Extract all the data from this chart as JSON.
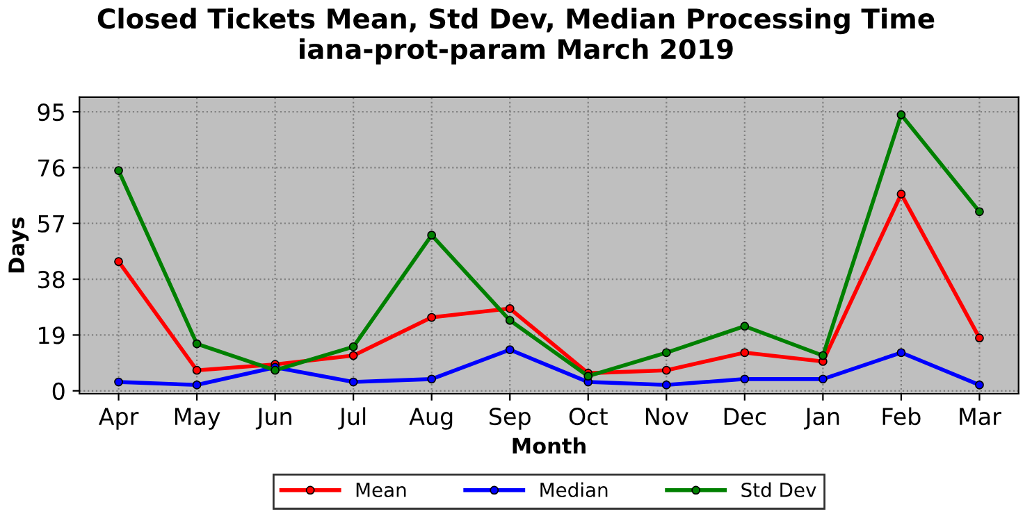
{
  "chart_data": {
    "type": "line",
    "title": "Closed Tickets Mean, Std Dev, Median Processing Time\niana-prot-param March 2019",
    "xlabel": "Month",
    "ylabel": "Days",
    "categories": [
      "Apr",
      "May",
      "Jun",
      "Jul",
      "Aug",
      "Sep",
      "Oct",
      "Nov",
      "Dec",
      "Jan",
      "Feb",
      "Mar"
    ],
    "series": [
      {
        "name": "Mean",
        "color": "#ff0000",
        "values": [
          44,
          7,
          9,
          12,
          25,
          28,
          6,
          7,
          13,
          10,
          67,
          18
        ]
      },
      {
        "name": "Median",
        "color": "#0000ff",
        "values": [
          3,
          2,
          8,
          3,
          4,
          14,
          3,
          2,
          4,
          4,
          13,
          2
        ]
      },
      {
        "name": "Std Dev",
        "color": "#008000",
        "values": [
          75,
          16,
          7,
          15,
          53,
          24,
          5,
          13,
          22,
          12,
          94,
          61
        ]
      }
    ],
    "ylim": [
      -1,
      100
    ],
    "yticks": [
      0,
      19,
      38,
      57,
      76,
      95
    ],
    "grid": true,
    "legend": "bottom",
    "marker": "circle",
    "line_style": "solid"
  }
}
